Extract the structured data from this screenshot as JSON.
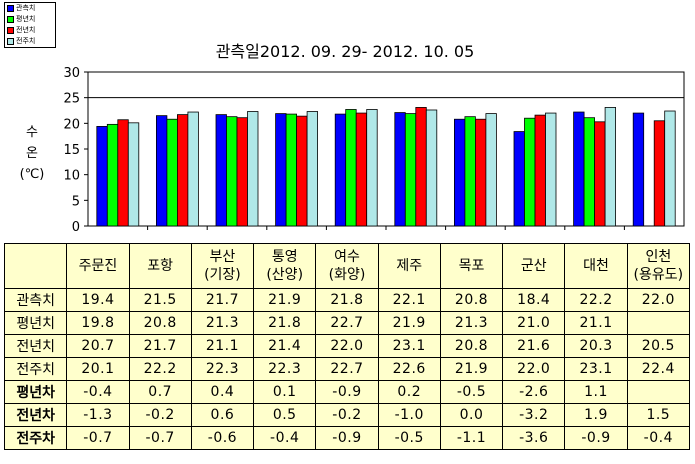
{
  "chart_data": {
    "type": "bar",
    "title": "관측일2012. 09. 29-  2012. 10. 05",
    "ylabel_lines": [
      "수",
      "온",
      "(℃)"
    ],
    "ylim": [
      0,
      30
    ],
    "yticks": [
      0,
      5,
      10,
      15,
      20,
      25,
      30
    ],
    "grid": "horizontal at 25",
    "legend_position": "top-left",
    "categories": [
      "주문진",
      "포항",
      "부산 (기장)",
      "통영 (산양)",
      "여수 (화양)",
      "제주",
      "목포",
      "군산",
      "대천",
      "인천 (용유도)"
    ],
    "category_lines": [
      [
        "주문진"
      ],
      [
        "포항"
      ],
      [
        "부산",
        "(기장)"
      ],
      [
        "통영",
        "(산양)"
      ],
      [
        "여수",
        "(화양)"
      ],
      [
        "제주"
      ],
      [
        "목포"
      ],
      [
        "군산"
      ],
      [
        "대천"
      ],
      [
        "인천",
        "(용유도)"
      ]
    ],
    "series": [
      {
        "name": "관측치",
        "color": "#0000ff",
        "values": [
          19.4,
          21.5,
          21.7,
          21.9,
          21.8,
          22.1,
          20.8,
          18.4,
          22.2,
          22.0
        ]
      },
      {
        "name": "평년치",
        "color": "#00ff00",
        "values": [
          19.8,
          20.8,
          21.3,
          21.8,
          22.7,
          21.9,
          21.3,
          21.0,
          21.1,
          null
        ]
      },
      {
        "name": "전년치",
        "color": "#ff0000",
        "values": [
          20.7,
          21.7,
          21.1,
          21.4,
          22.0,
          23.1,
          20.8,
          21.6,
          20.3,
          20.5
        ]
      },
      {
        "name": "전주치",
        "color": "#b0e8e8",
        "values": [
          20.1,
          22.2,
          22.3,
          22.3,
          22.7,
          22.6,
          21.9,
          22.0,
          23.1,
          22.4
        ]
      }
    ]
  },
  "table": {
    "rows": [
      {
        "label": "관측치",
        "bold": false,
        "values": [
          "19.4",
          "21.5",
          "21.7",
          "21.9",
          "21.8",
          "22.1",
          "20.8",
          "18.4",
          "22.2",
          "22.0"
        ]
      },
      {
        "label": "평년치",
        "bold": false,
        "values": [
          "19.8",
          "20.8",
          "21.3",
          "21.8",
          "22.7",
          "21.9",
          "21.3",
          "21.0",
          "21.1",
          ""
        ]
      },
      {
        "label": "전년치",
        "bold": false,
        "values": [
          "20.7",
          "21.7",
          "21.1",
          "21.4",
          "22.0",
          "23.1",
          "20.8",
          "21.6",
          "20.3",
          "20.5"
        ]
      },
      {
        "label": "전주치",
        "bold": false,
        "values": [
          "20.1",
          "22.2",
          "22.3",
          "22.3",
          "22.7",
          "22.6",
          "21.9",
          "22.0",
          "23.1",
          "22.4"
        ]
      },
      {
        "label": "평년차",
        "bold": true,
        "values": [
          "-0.4",
          "0.7",
          "0.4",
          "0.1",
          "-0.9",
          "0.2",
          "-0.5",
          "-2.6",
          "1.1",
          ""
        ]
      },
      {
        "label": "전년차",
        "bold": true,
        "values": [
          "-1.3",
          "-0.2",
          "0.6",
          "0.5",
          "-0.2",
          "-1.0",
          "0.0",
          "-3.2",
          "1.9",
          "1.5"
        ]
      },
      {
        "label": "전주차",
        "bold": true,
        "values": [
          "-0.7",
          "-0.7",
          "-0.6",
          "-0.4",
          "-0.9",
          "-0.5",
          "-1.1",
          "-3.6",
          "-0.9",
          "-0.4"
        ]
      }
    ]
  }
}
